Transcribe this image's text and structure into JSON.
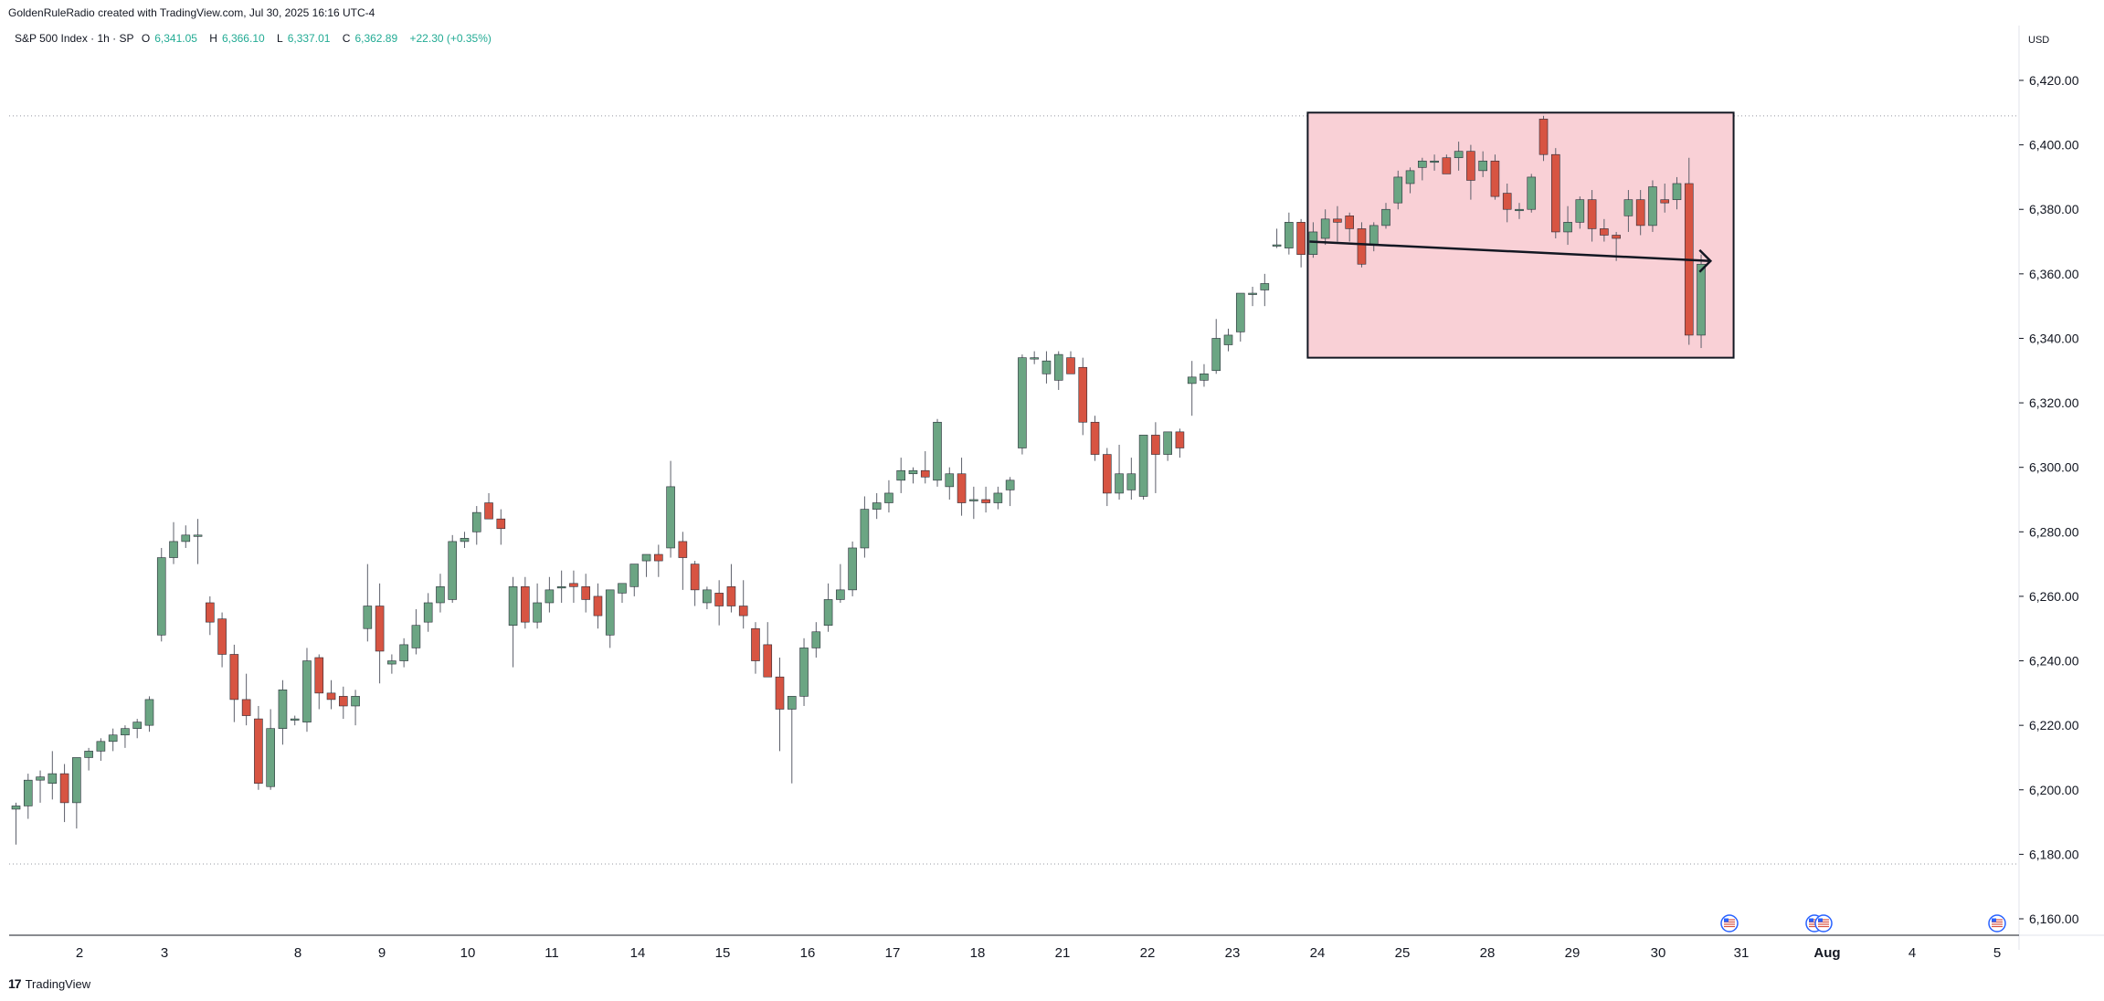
{
  "header": {
    "credit": "GoldenRuleRadio created with TradingView.com, Jul 30, 2025 16:16 UTC-4",
    "symbol": "S&P 500 Index · 1h · SP",
    "ohlc": {
      "open_label": "O",
      "open": "6,341.05",
      "high_label": "H",
      "high": "6,366.10",
      "low_label": "L",
      "low": "6,337.01",
      "close_label": "C",
      "close": "6,362.89",
      "change": "+22.30 (+0.35%)"
    },
    "currency": "USD"
  },
  "footer": {
    "brand": "TradingView",
    "logo_icon": "tradingview-logo-icon"
  },
  "colors": {
    "up": "#6ba583",
    "down": "#d75442",
    "wick": "#5d606b",
    "box_fill": "#f9d0d6",
    "grid": "#e0e3eb"
  },
  "chart_data": {
    "type": "candlestick",
    "title": "S&P 500 Index · 1h · SP",
    "currency": "USD",
    "ylim": [
      6152,
      6430
    ],
    "y_ticks": [
      6160,
      6180,
      6200,
      6220,
      6240,
      6260,
      6280,
      6300,
      6320,
      6340,
      6360,
      6380,
      6400,
      6420
    ],
    "y_tick_labels": [
      "6,160.00",
      "6,180.00",
      "6,200.00",
      "6,220.00",
      "6,240.00",
      "6,260.00",
      "6,280.00",
      "6,300.00",
      "6,320.00",
      "6,340.00",
      "6,360.00",
      "6,380.00",
      "6,400.00",
      "6,420.00"
    ],
    "x_tick_labels": [
      "2",
      "3",
      "8",
      "9",
      "10",
      "11",
      "14",
      "15",
      "16",
      "17",
      "18",
      "21",
      "22",
      "23",
      "24",
      "25",
      "28",
      "29",
      "30",
      "31",
      "Aug",
      "4",
      "5"
    ],
    "grid": false,
    "reference_levels": [
      6409,
      6177
    ],
    "candles": [
      [
        6194,
        6196,
        6183,
        6195
      ],
      [
        6195,
        6205,
        6191,
        6203
      ],
      [
        6203,
        6206,
        6196,
        6204
      ],
      [
        6202,
        6212,
        6197,
        6205
      ],
      [
        6205,
        6208,
        6190,
        6196
      ],
      [
        6196,
        6210,
        6188,
        6210
      ],
      [
        6210,
        6213,
        6206,
        6212
      ],
      [
        6212,
        6216,
        6209,
        6215
      ],
      [
        6215,
        6219,
        6212,
        6217
      ],
      [
        6217,
        6220,
        6213,
        6219
      ],
      [
        6219,
        6222,
        6216,
        6221
      ],
      [
        6220,
        6229,
        6218,
        6228
      ],
      [
        6248,
        6275,
        6246,
        6272
      ],
      [
        6272,
        6283,
        6270,
        6277
      ],
      [
        6277,
        6282,
        6275,
        6279
      ],
      [
        6279,
        6284,
        6270,
        6279
      ],
      [
        6258,
        6260,
        6248,
        6252
      ],
      [
        6253,
        6255,
        6238,
        6242
      ],
      [
        6242,
        6245,
        6221,
        6228
      ],
      [
        6228,
        6236,
        6220,
        6223
      ],
      [
        6222,
        6226,
        6200,
        6202
      ],
      [
        6201,
        6225,
        6200,
        6219
      ],
      [
        6219,
        6234,
        6214,
        6231
      ],
      [
        6222,
        6223,
        6220,
        6222
      ],
      [
        6221,
        6244,
        6218,
        6240
      ],
      [
        6241,
        6242,
        6225,
        6230
      ],
      [
        6230,
        6234,
        6225,
        6228
      ],
      [
        6229,
        6232,
        6222,
        6226
      ],
      [
        6226,
        6231,
        6220,
        6229
      ],
      [
        6250,
        6270,
        6246,
        6257
      ],
      [
        6257,
        6264,
        6233,
        6243
      ],
      [
        6239,
        6242,
        6236,
        6240
      ],
      [
        6240,
        6247,
        6238,
        6245
      ],
      [
        6244,
        6256,
        6242,
        6251
      ],
      [
        6252,
        6261,
        6249,
        6258
      ],
      [
        6258,
        6267,
        6255,
        6263
      ],
      [
        6259,
        6279,
        6258,
        6277
      ],
      [
        6277,
        6280,
        6275,
        6278
      ],
      [
        6280,
        6288,
        6276,
        6286
      ],
      [
        6289,
        6292,
        6284,
        6284
      ],
      [
        6284,
        6287,
        6276,
        6281
      ],
      [
        6251,
        6266,
        6238,
        6263
      ],
      [
        6263,
        6266,
        6250,
        6252
      ],
      [
        6252,
        6264,
        6250,
        6258
      ],
      [
        6258,
        6266,
        6255,
        6262
      ],
      [
        6263,
        6268,
        6258,
        6263
      ],
      [
        6264,
        6268,
        6258,
        6263
      ],
      [
        6263,
        6267,
        6255,
        6259
      ],
      [
        6260,
        6264,
        6250,
        6254
      ],
      [
        6248,
        6262,
        6244,
        6262
      ],
      [
        6261,
        6264,
        6258,
        6264
      ],
      [
        6263,
        6270,
        6260,
        6270
      ],
      [
        6271,
        6273,
        6266,
        6273
      ],
      [
        6273,
        6276,
        6266,
        6271
      ],
      [
        6275,
        6302,
        6272,
        6294
      ],
      [
        6277,
        6280,
        6262,
        6272
      ],
      [
        6270,
        6271,
        6257,
        6262
      ],
      [
        6258,
        6263,
        6256,
        6262
      ],
      [
        6261,
        6265,
        6251,
        6257
      ],
      [
        6263,
        6270,
        6255,
        6257
      ],
      [
        6257,
        6265,
        6250,
        6254
      ],
      [
        6250,
        6252,
        6236,
        6240
      ],
      [
        6245,
        6252,
        6235,
        6235
      ],
      [
        6235,
        6241,
        6212,
        6225
      ],
      [
        6225,
        6229,
        6202,
        6229
      ],
      [
        6229,
        6247,
        6226,
        6244
      ],
      [
        6244,
        6252,
        6241,
        6249
      ],
      [
        6251,
        6264,
        6249,
        6259
      ],
      [
        6259,
        6270,
        6258,
        6262
      ],
      [
        6262,
        6277,
        6260,
        6275
      ],
      [
        6275,
        6291,
        6272,
        6287
      ],
      [
        6287,
        6292,
        6284,
        6289
      ],
      [
        6289,
        6296,
        6286,
        6292
      ],
      [
        6296,
        6303,
        6292,
        6299
      ],
      [
        6298,
        6300,
        6295,
        6299
      ],
      [
        6299,
        6305,
        6295,
        6297
      ],
      [
        6296,
        6315,
        6294,
        6314
      ],
      [
        6294,
        6300,
        6290,
        6298
      ],
      [
        6298,
        6303,
        6285,
        6289
      ],
      [
        6290,
        6294,
        6284,
        6290
      ],
      [
        6290,
        6294,
        6286,
        6289
      ],
      [
        6289,
        6294,
        6287,
        6292
      ],
      [
        6293,
        6297,
        6288,
        6296
      ],
      [
        6306,
        6335,
        6304,
        6334
      ],
      [
        6334,
        6336,
        6332,
        6334
      ],
      [
        6329,
        6336,
        6326,
        6333
      ],
      [
        6327,
        6336,
        6324,
        6335
      ],
      [
        6334,
        6336,
        6329,
        6329
      ],
      [
        6331,
        6334,
        6310,
        6314
      ],
      [
        6314,
        6316,
        6302,
        6304
      ],
      [
        6304,
        6306,
        6288,
        6292
      ],
      [
        6292,
        6307,
        6290,
        6298
      ],
      [
        6293,
        6303,
        6290,
        6298
      ],
      [
        6291,
        6308,
        6290,
        6310
      ],
      [
        6310,
        6314,
        6292,
        6304
      ],
      [
        6304,
        6311,
        6302,
        6311
      ],
      [
        6311,
        6312,
        6303,
        6306
      ],
      [
        6326,
        6333,
        6316,
        6328
      ],
      [
        6327,
        6332,
        6325,
        6329
      ],
      [
        6330,
        6346,
        6329,
        6340
      ],
      [
        6338,
        6343,
        6336,
        6341
      ],
      [
        6342,
        6354,
        6339,
        6354
      ],
      [
        6354,
        6356,
        6350,
        6354
      ],
      [
        6355,
        6360,
        6350,
        6357
      ],
      [
        6369,
        6374,
        6368,
        6369
      ],
      [
        6368,
        6379,
        6366,
        6376
      ],
      [
        6376,
        6377,
        6362,
        6366
      ],
      [
        6366,
        6376,
        6365,
        6373
      ],
      [
        6371,
        6380,
        6369,
        6377
      ],
      [
        6377,
        6381,
        6370,
        6376
      ],
      [
        6378,
        6379,
        6370,
        6374
      ],
      [
        6374,
        6376,
        6362,
        6363
      ],
      [
        6369,
        6376,
        6367,
        6375
      ],
      [
        6375,
        6382,
        6374,
        6380
      ],
      [
        6382,
        6392,
        6380,
        6390
      ],
      [
        6388,
        6393,
        6385,
        6392
      ],
      [
        6393,
        6396,
        6389,
        6395
      ],
      [
        6395,
        6397,
        6392,
        6395
      ],
      [
        6396,
        6397,
        6391,
        6391
      ],
      [
        6396,
        6401,
        6392,
        6398
      ],
      [
        6398,
        6400,
        6383,
        6389
      ],
      [
        6392,
        6398,
        6390,
        6395
      ],
      [
        6395,
        6397,
        6383,
        6384
      ],
      [
        6385,
        6388,
        6376,
        6380
      ],
      [
        6380,
        6382,
        6377,
        6380
      ],
      [
        6380,
        6391,
        6379,
        6390
      ],
      [
        6408,
        6409,
        6395,
        6397
      ],
      [
        6397,
        6399,
        6371,
        6373
      ],
      [
        6373,
        6381,
        6369,
        6376
      ],
      [
        6376,
        6384,
        6374,
        6383
      ],
      [
        6383,
        6386,
        6370,
        6374
      ],
      [
        6374,
        6377,
        6370,
        6372
      ],
      [
        6372,
        6373,
        6364,
        6371
      ],
      [
        6378,
        6386,
        6373,
        6383
      ],
      [
        6383,
        6386,
        6372,
        6375
      ],
      [
        6375,
        6389,
        6373,
        6387
      ],
      [
        6383,
        6388,
        6379,
        6382
      ],
      [
        6383,
        6390,
        6380,
        6388
      ],
      [
        6388,
        6396,
        6338,
        6341
      ],
      [
        6341,
        6366,
        6337,
        6363
      ]
    ],
    "annotation": {
      "type": "rectangle_with_arrow",
      "box_time_range": [
        "Jul 24",
        "Jul 31"
      ],
      "box_price_range": [
        6334,
        6410
      ],
      "arrow_from": 6370,
      "arrow_to": 6364
    },
    "event_markers": [
      "us-flag-icon",
      "us-flag-icon",
      "us-flag-icon",
      "us-flag-icon"
    ]
  }
}
